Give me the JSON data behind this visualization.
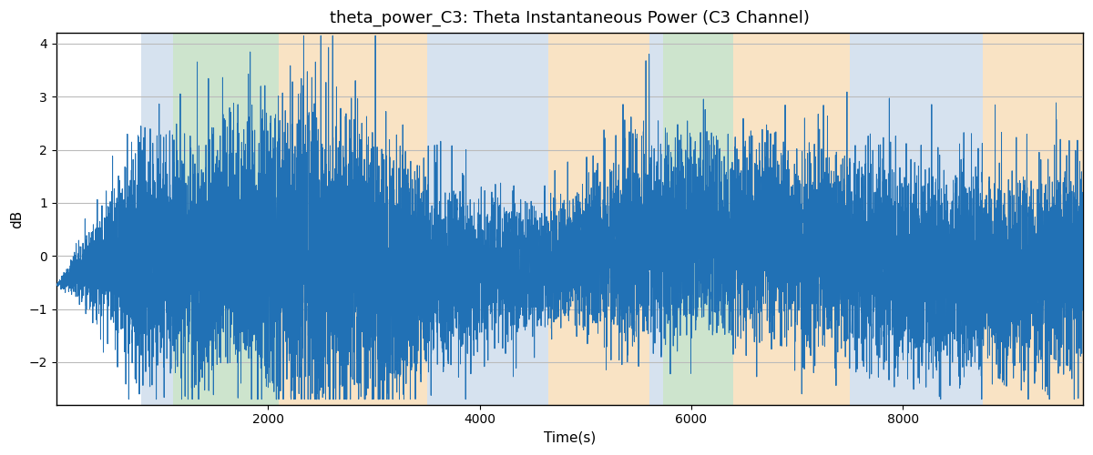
{
  "title": "theta_power_C3: Theta Instantaneous Power (C3 Channel)",
  "xlabel": "Time(s)",
  "ylabel": "dB",
  "ylim": [
    -2.8,
    4.2
  ],
  "xlim": [
    0,
    9700
  ],
  "line_color": "#2171b5",
  "line_width": 0.7,
  "grid_color": "#bbbbbb",
  "background_regions": [
    {
      "start": 800,
      "end": 1100,
      "color": "#aec6e0",
      "alpha": 0.5
    },
    {
      "start": 1100,
      "end": 2100,
      "color": "#90c490",
      "alpha": 0.45
    },
    {
      "start": 2100,
      "end": 3500,
      "color": "#f5c88a",
      "alpha": 0.5
    },
    {
      "start": 3500,
      "end": 4650,
      "color": "#aec6e0",
      "alpha": 0.5
    },
    {
      "start": 4650,
      "end": 5600,
      "color": "#f5c88a",
      "alpha": 0.5
    },
    {
      "start": 5600,
      "end": 5730,
      "color": "#aec6e0",
      "alpha": 0.5
    },
    {
      "start": 5730,
      "end": 6400,
      "color": "#90c490",
      "alpha": 0.45
    },
    {
      "start": 6400,
      "end": 7500,
      "color": "#f5c88a",
      "alpha": 0.5
    },
    {
      "start": 7500,
      "end": 8750,
      "color": "#aec6e0",
      "alpha": 0.5
    },
    {
      "start": 8750,
      "end": 9700,
      "color": "#f5c88a",
      "alpha": 0.5
    }
  ],
  "title_fontsize": 13
}
